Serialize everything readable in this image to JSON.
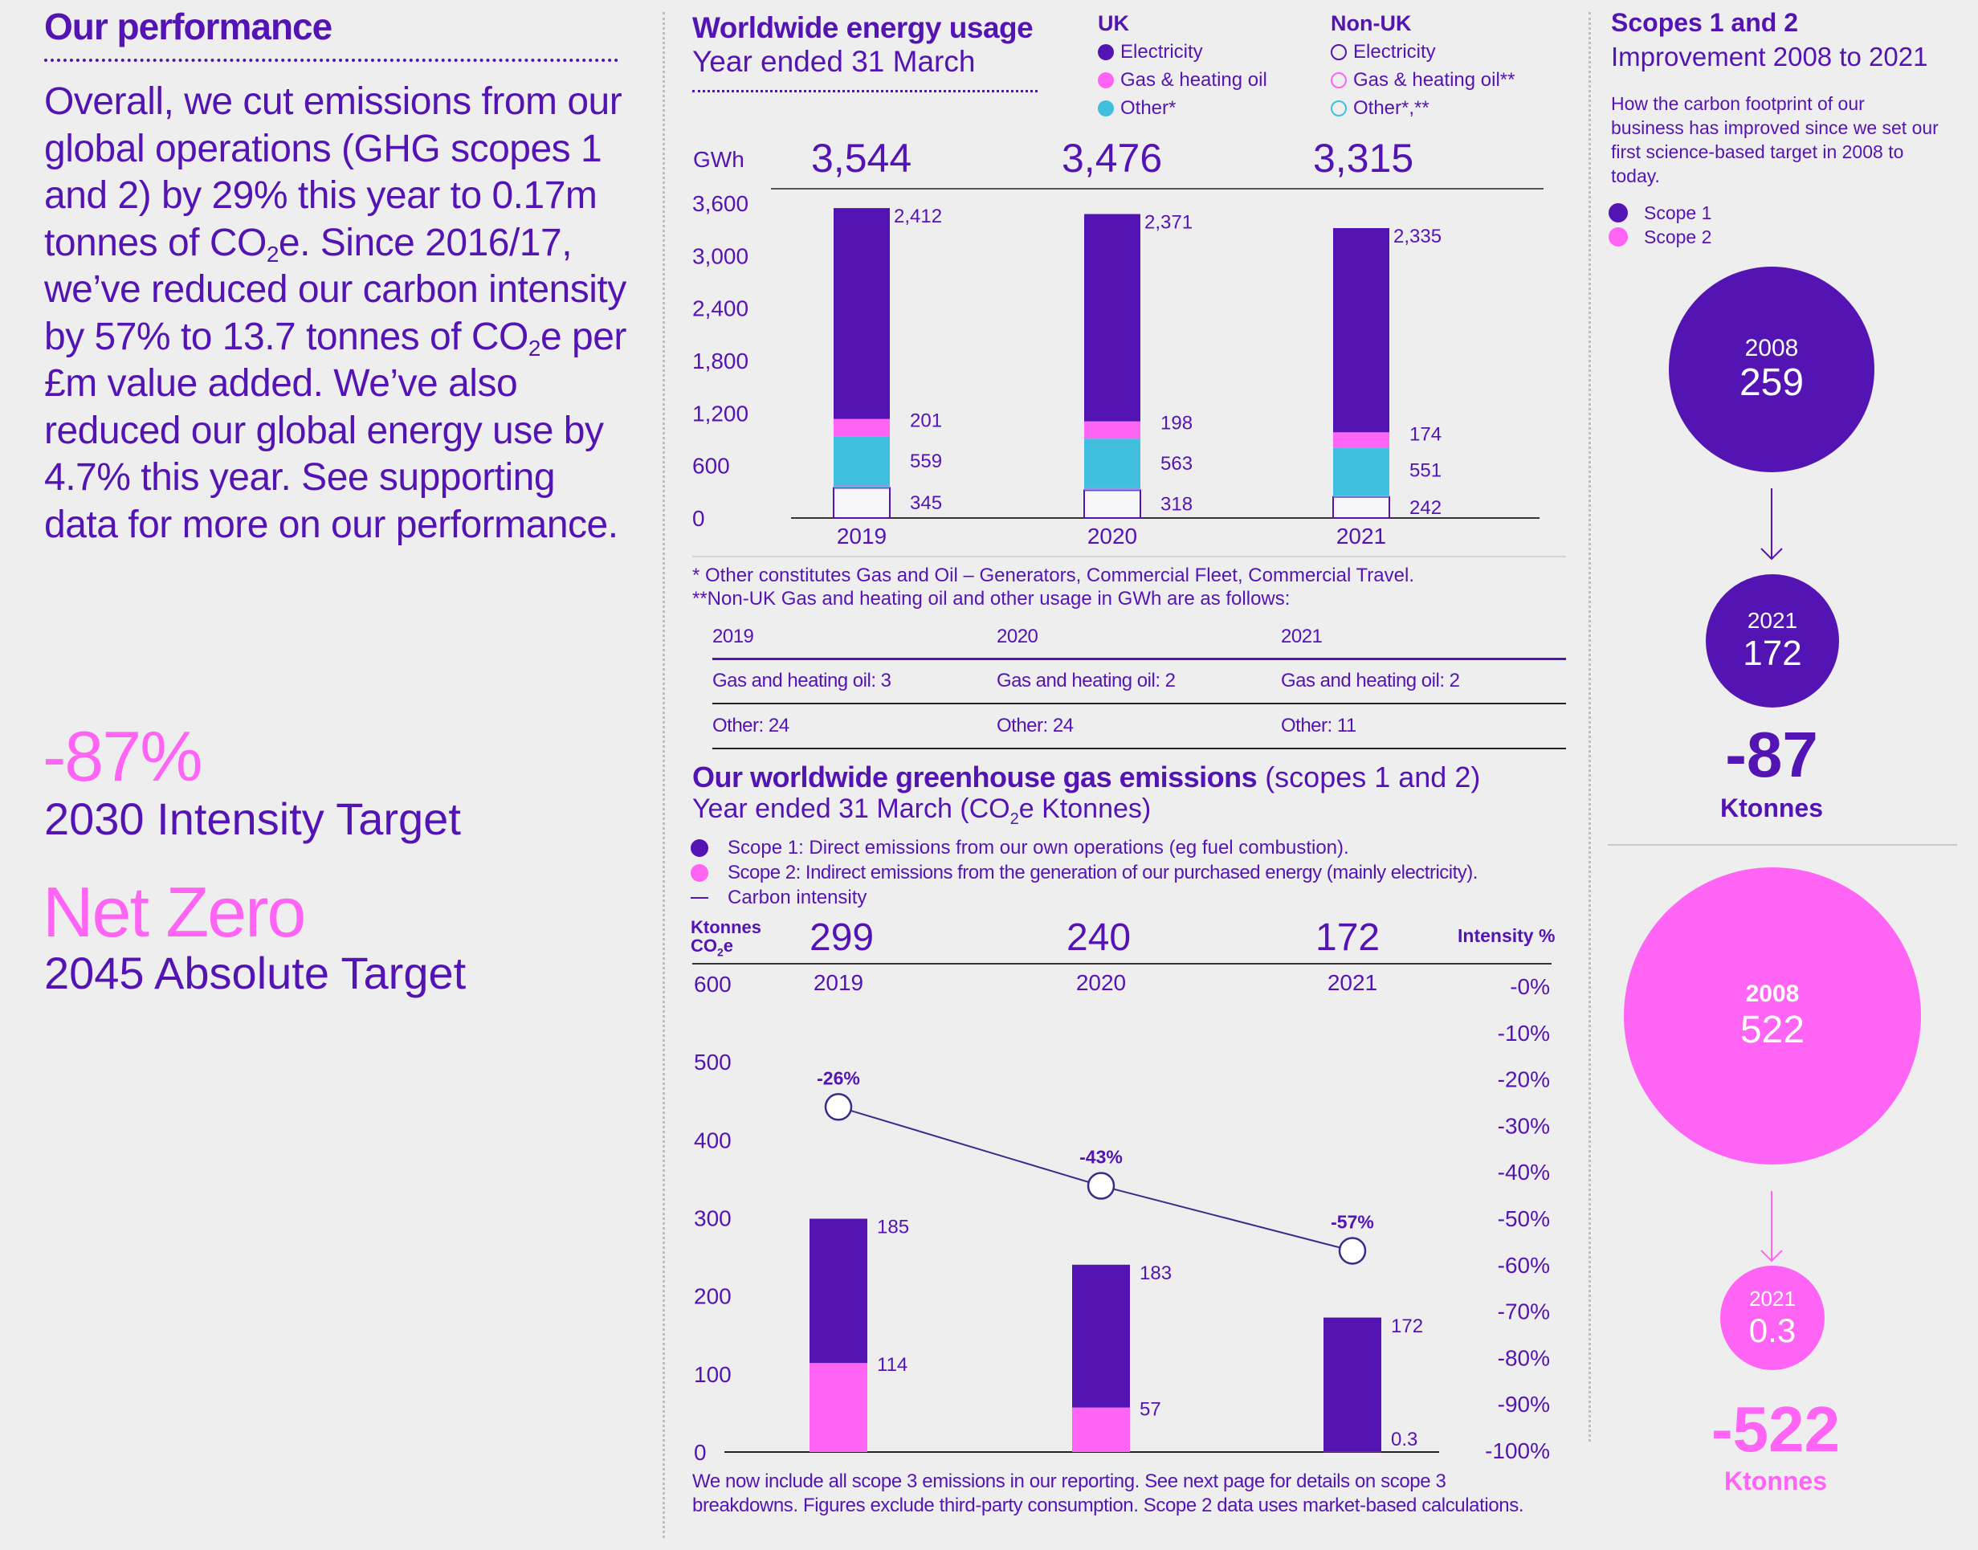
{
  "colors": {
    "purple": "#5414b4",
    "pink": "#ff64f5",
    "cyan": "#40bfdf",
    "background": "#eeeeee"
  },
  "left": {
    "title": "Our performance",
    "paragraph_parts": [
      "Overall, we cut emissions from our global operations (GHG scopes 1 and 2) by 29% this year to 0.17m tonnes of CO",
      "2",
      "e. Since 2016/17, we’ve reduced our carbon intensity by 57% to 13.7 tonnes of CO",
      "2",
      "e per £m value added. We’ve also reduced our global energy use by 4.7% this year. See supporting data for more on our performance."
    ],
    "stat1_value": "-87%",
    "stat1_label": "2030 Intensity Target",
    "stat2_value": "Net Zero",
    "stat2_label": "2045 Absolute Target"
  },
  "energy": {
    "title": "Worldwide energy usage",
    "subtitle": "Year ended 31 March",
    "legend": {
      "uk_heading": "UK",
      "nonuk_heading": "Non-UK",
      "uk_items": [
        "Electricity",
        "Gas & heating oil",
        "Other*"
      ],
      "nonuk_items": [
        "Electricity",
        "Gas & heating oil**",
        "Other*,**"
      ]
    },
    "unit_label": "GWh",
    "totals": [
      "3,544",
      "3,476",
      "3,315"
    ],
    "footnote1": "*  Other constitutes Gas and Oil – Generators, Commercial Fleet, Commercial Travel.",
    "footnote2": "**Non-UK Gas and heating oil and other usage in GWh are as follows:",
    "nonuk_table": {
      "headers": [
        "2019",
        "2020",
        "2021"
      ],
      "rows": [
        [
          "Gas and heating oil: 3",
          "Gas and heating oil: 2",
          "Gas and heating oil: 2"
        ],
        [
          "Other: 24",
          "Other: 24",
          "Other: 11"
        ]
      ]
    }
  },
  "emissions": {
    "title_bold": "Our worldwide greenhouse gas emissions",
    "title_rest": " (scopes 1 and 2)",
    "subtitle_pre": "Year ended 31 March (CO",
    "subtitle_sub": "2",
    "subtitle_post": "e Ktonnes)",
    "legend": [
      "Scope 1: Direct emissions from our own operations (eg fuel combustion).",
      "Scope 2: Indirect emissions from the generation of our purchased energy (mainly electricity).",
      "Carbon intensity"
    ],
    "unit_line1": "Ktonnes",
    "unit_line2_pre": "CO",
    "unit_line2_sub": "2",
    "unit_line2_post": "e",
    "right_axis_title": "Intensity %",
    "totals": [
      "299",
      "240",
      "172"
    ],
    "footnote": "We now include all scope 3 emissions in our reporting. See next page for details on scope 3 breakdowns. Figures exclude third-party consumption. Scope 2 data uses market-based calculations."
  },
  "scopes": {
    "title": "Scopes 1 and 2",
    "subtitle": "Improvement 2008 to 2021",
    "description": "How the carbon footprint of our business has improved since we set our first science-based target in 2008 to today.",
    "legend": [
      "Scope 1",
      "Scope 2"
    ],
    "scope1": {
      "from_year": "2008",
      "from_value": "259",
      "to_year": "2021",
      "to_value": "172",
      "change": "-87",
      "unit": "Ktonnes"
    },
    "scope2": {
      "from_year": "2008",
      "from_value": "522",
      "to_year": "2021",
      "to_value": "0.3",
      "change": "-522",
      "unit": "Ktonnes"
    }
  },
  "chart_data": [
    {
      "type": "bar",
      "stacked": true,
      "title": "Worldwide energy usage",
      "subtitle": "Year ended 31 March",
      "ylabel": "GWh",
      "categories": [
        "2019",
        "2020",
        "2021"
      ],
      "ylim": [
        0,
        3600
      ],
      "yticks": [
        0,
        600,
        1200,
        1800,
        2400,
        3000,
        3600
      ],
      "ytick_labels": [
        "0",
        "600",
        "1,200",
        "1,800",
        "2,400",
        "3,000",
        "3,600"
      ],
      "totals": [
        3544,
        3476,
        3315
      ],
      "series": [
        {
          "name": "Non-UK Other*,**",
          "values": [
            24,
            24,
            11
          ],
          "color": "#40bfdf",
          "style": "outline"
        },
        {
          "name": "Non-UK Gas & heating oil**",
          "values": [
            3,
            2,
            2
          ],
          "color": "#ff64f5",
          "style": "outline"
        },
        {
          "name": "Non-UK Electricity",
          "values": [
            345,
            318,
            242
          ],
          "color": "#5414b4",
          "style": "outline"
        },
        {
          "name": "UK Other*",
          "values": [
            559,
            563,
            551
          ],
          "color": "#40bfdf"
        },
        {
          "name": "UK Gas & heating oil",
          "values": [
            201,
            198,
            174
          ],
          "color": "#ff64f5"
        },
        {
          "name": "UK Electricity",
          "values": [
            2412,
            2371,
            2335
          ],
          "color": "#5414b4"
        }
      ],
      "data_labels": [
        [
          "2,412",
          "201",
          "559",
          "345"
        ],
        [
          "2,371",
          "198",
          "563",
          "318"
        ],
        [
          "2,335",
          "174",
          "551",
          "242"
        ]
      ],
      "grid": false
    },
    {
      "type": "bar",
      "stacked": true,
      "title": "Our worldwide greenhouse gas emissions (scopes 1 and 2)",
      "subtitle": "Year ended 31 March (CO2e Ktonnes)",
      "ylabel": "Ktonnes CO2e",
      "y2label": "Intensity %",
      "categories": [
        "2019",
        "2020",
        "2021"
      ],
      "ylim": [
        0,
        600
      ],
      "yticks": [
        0,
        100,
        200,
        300,
        400,
        500,
        600
      ],
      "y2lim": [
        -100,
        0
      ],
      "y2ticks": [
        "-0%",
        "-10%",
        "-20%",
        "-30%",
        "-40%",
        "-50%",
        "-60%",
        "-70%",
        "-80%",
        "-90%",
        "-100%"
      ],
      "totals": [
        299,
        240,
        172
      ],
      "series": [
        {
          "name": "Scope 2",
          "values": [
            114,
            57,
            0.3
          ],
          "color": "#ff64f5"
        },
        {
          "name": "Scope 1",
          "values": [
            185,
            183,
            172
          ],
          "color": "#5414b4"
        }
      ],
      "line_series": {
        "name": "Carbon intensity",
        "values": [
          -26,
          -43,
          -57
        ],
        "labels": [
          "-26%",
          "-43%",
          "-57%"
        ],
        "axis": "right"
      },
      "data_labels": [
        [
          "185",
          "114"
        ],
        [
          "183",
          "57"
        ],
        [
          "172",
          "0.3"
        ]
      ],
      "grid": false
    }
  ]
}
